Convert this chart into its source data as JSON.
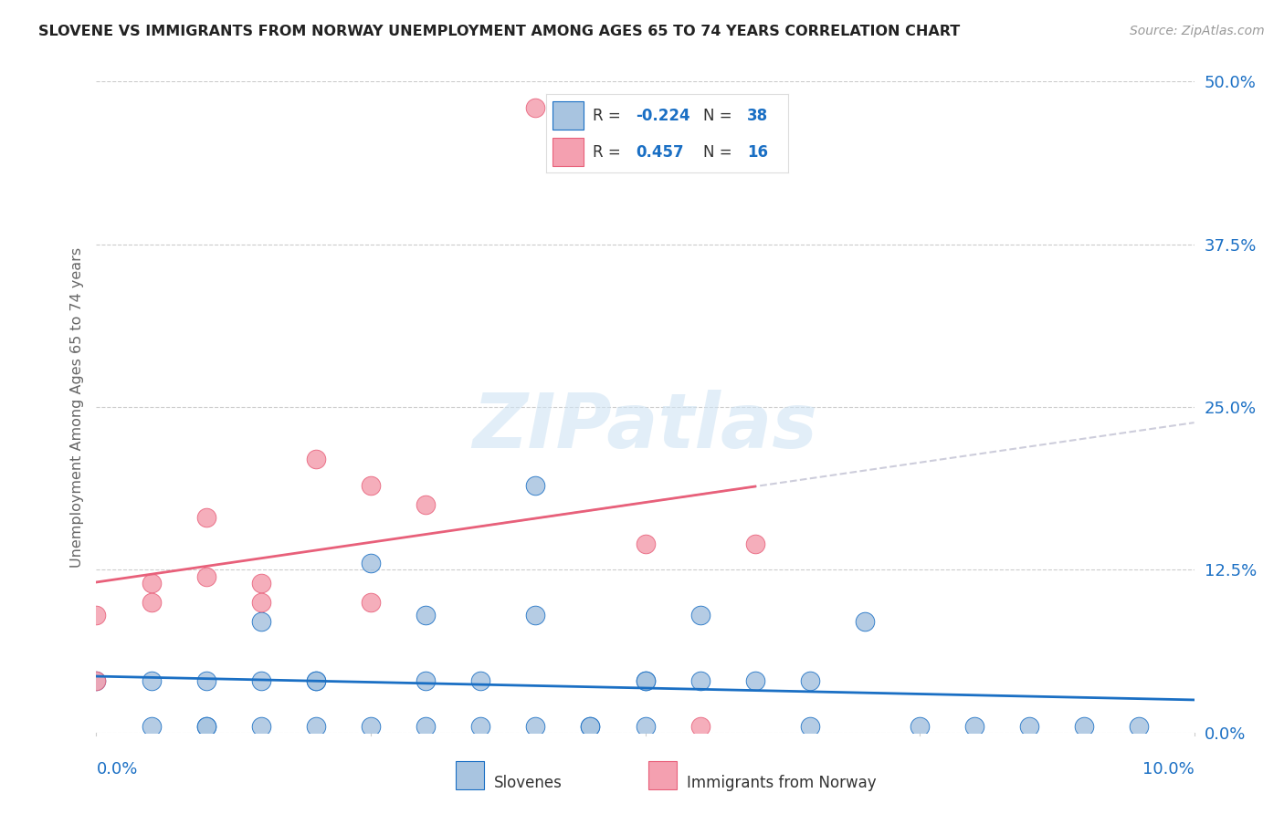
{
  "title": "SLOVENE VS IMMIGRANTS FROM NORWAY UNEMPLOYMENT AMONG AGES 65 TO 74 YEARS CORRELATION CHART",
  "source": "Source: ZipAtlas.com",
  "ylabel": "Unemployment Among Ages 65 to 74 years",
  "yticks_labels": [
    "0.0%",
    "12.5%",
    "25.0%",
    "37.5%",
    "50.0%"
  ],
  "ytick_vals": [
    0.0,
    0.125,
    0.25,
    0.375,
    0.5
  ],
  "xlim": [
    0.0,
    0.1
  ],
  "ylim": [
    0.0,
    0.5
  ],
  "legend_slovene_R": "-0.224",
  "legend_slovene_N": "38",
  "legend_norway_R": "0.457",
  "legend_norway_N": "16",
  "blue_fill": "#a8c4e0",
  "pink_fill": "#f4a0b0",
  "blue_edge": "#1a6fc4",
  "pink_edge": "#e8607a",
  "line_blue": "#1a6fc4",
  "line_pink": "#e8607a",
  "line_dashed": "#c8c8d8",
  "grid_color": "#cccccc",
  "watermark": "ZIPatlas",
  "watermark_color": "#d0e4f4",
  "title_color": "#222222",
  "source_color": "#999999",
  "tick_label_color": "#1a6fc4",
  "axis_label_color": "#666666",
  "legend_text_color": "#333333",
  "slovene_x": [
    0.0,
    0.005,
    0.005,
    0.01,
    0.01,
    0.01,
    0.015,
    0.015,
    0.015,
    0.02,
    0.02,
    0.02,
    0.025,
    0.025,
    0.03,
    0.03,
    0.03,
    0.035,
    0.035,
    0.04,
    0.04,
    0.04,
    0.045,
    0.045,
    0.05,
    0.05,
    0.05,
    0.055,
    0.055,
    0.06,
    0.065,
    0.065,
    0.07,
    0.075,
    0.08,
    0.085,
    0.09,
    0.095
  ],
  "slovene_y": [
    0.04,
    0.04,
    0.005,
    0.04,
    0.005,
    0.005,
    0.085,
    0.04,
    0.005,
    0.04,
    0.04,
    0.005,
    0.13,
    0.005,
    0.09,
    0.04,
    0.005,
    0.04,
    0.005,
    0.19,
    0.09,
    0.005,
    0.005,
    0.005,
    0.04,
    0.04,
    0.005,
    0.09,
    0.04,
    0.04,
    0.005,
    0.04,
    0.085,
    0.005,
    0.005,
    0.005,
    0.005,
    0.005
  ],
  "norway_x": [
    0.0,
    0.0,
    0.005,
    0.005,
    0.01,
    0.01,
    0.015,
    0.015,
    0.02,
    0.025,
    0.025,
    0.03,
    0.04,
    0.05,
    0.055,
    0.06
  ],
  "norway_y": [
    0.09,
    0.04,
    0.115,
    0.1,
    0.165,
    0.12,
    0.115,
    0.1,
    0.21,
    0.1,
    0.19,
    0.175,
    0.48,
    0.145,
    0.005,
    0.145
  ]
}
